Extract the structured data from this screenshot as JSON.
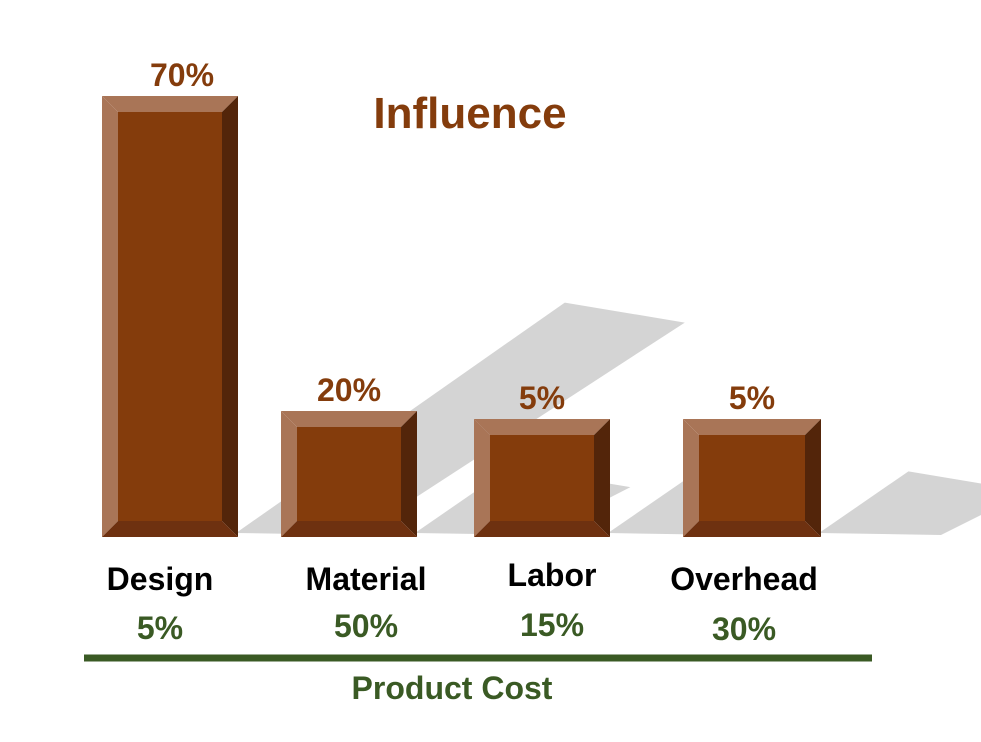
{
  "colors": {
    "bar_front": "#843C0C",
    "bar_light": "#A97557",
    "bar_dark": "#53250A",
    "bar_mid": "#6E3110",
    "shadow": "#D4D4D4",
    "influence_text": "#843C0C",
    "category_text": "#000000",
    "cost_text": "#3A5A24",
    "axis_line": "#3A5A24"
  },
  "chart_data": {
    "type": "bar",
    "title": "Influence",
    "categories": [
      "Design",
      "Material",
      "Labor",
      "Overhead"
    ],
    "series": [
      {
        "name": "Influence",
        "values": [
          70,
          20,
          5,
          5
        ],
        "labels": [
          "70%",
          "20%",
          "5%",
          "5%"
        ]
      },
      {
        "name": "Product Cost",
        "values": [
          5,
          50,
          15,
          30
        ],
        "labels": [
          "5%",
          "50%",
          "15%",
          "30%"
        ]
      }
    ],
    "xlabel": "Product Cost",
    "ylabel": "",
    "ylim": [
      0,
      70
    ],
    "grid": false,
    "legend": "none"
  }
}
